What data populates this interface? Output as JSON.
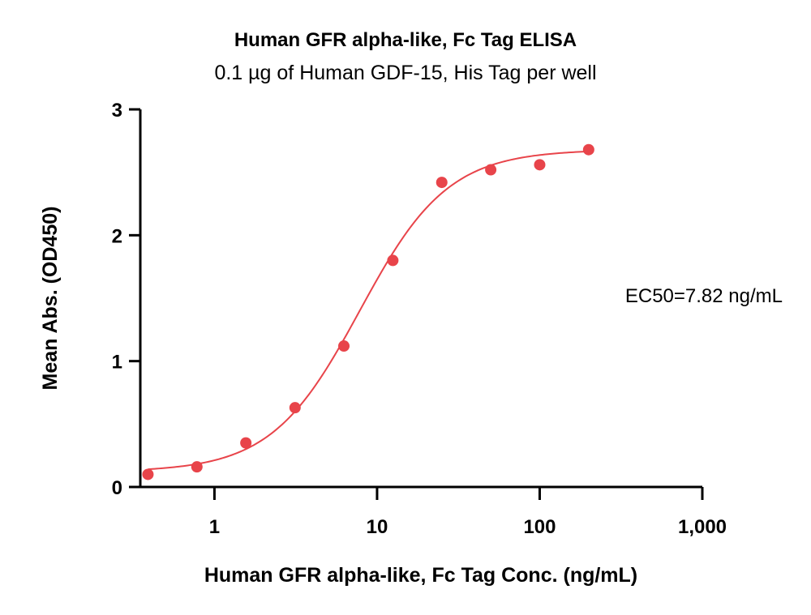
{
  "chart_data": {
    "type": "scatter",
    "title": "Human GFR alpha-like, Fc Tag ELISA",
    "subtitle": "0.1 µg of Human GDF-15, His Tag per well",
    "xlabel": "Human GFR alpha-like, Fc Tag Conc. (ng/mL)",
    "ylabel": "Mean Abs. (OD450)",
    "x_scale": "log",
    "xlim": [
      0.35,
      1000
    ],
    "ylim": [
      0,
      3
    ],
    "x_ticks": [
      1,
      10,
      100,
      1000
    ],
    "x_tick_labels": [
      "1",
      "10",
      "100",
      "1,000"
    ],
    "y_ticks": [
      0,
      1,
      2,
      3
    ],
    "y_tick_labels": [
      "0",
      "1",
      "2",
      "3"
    ],
    "grid": false,
    "series": [
      {
        "color": "#e8444a",
        "x": [
          0.39,
          0.78,
          1.56,
          3.13,
          6.25,
          12.5,
          25,
          50,
          100,
          200
        ],
        "y": [
          0.1,
          0.16,
          0.35,
          0.63,
          1.12,
          1.8,
          2.42,
          2.52,
          2.56,
          2.68
        ]
      }
    ],
    "fit": {
      "type": "4PL",
      "bottom": 0.12,
      "top": 2.68,
      "ec50": 7.82,
      "hill": 1.6,
      "color": "#e8444a"
    },
    "annotations": [
      {
        "text": "EC50=7.82 ng/mL"
      }
    ]
  }
}
